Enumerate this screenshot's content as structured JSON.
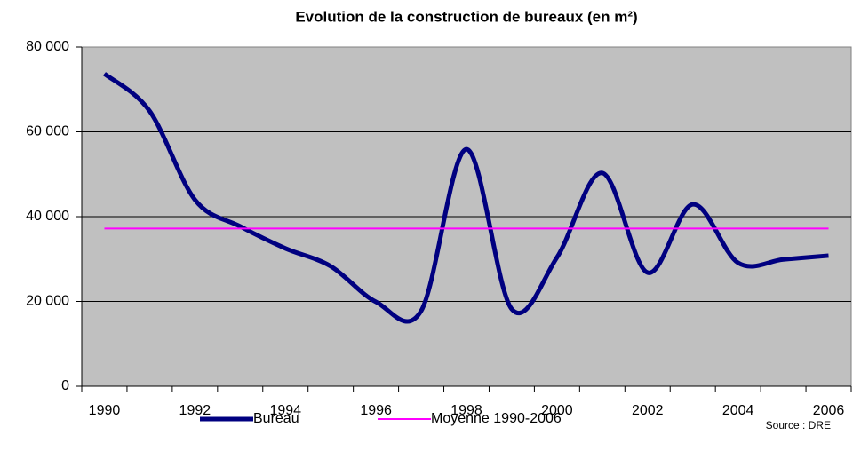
{
  "chart_data": {
    "type": "line",
    "title": "Evolution de la construction de bureaux (en m²)",
    "categories": [
      "1990",
      null,
      "1992",
      null,
      "1994",
      null,
      "1996",
      null,
      "1998",
      null,
      "2000",
      null,
      "2002",
      null,
      "2004",
      null,
      "2006"
    ],
    "series": [
      {
        "name": "Bureau",
        "color": "#000080",
        "values": [
          73700,
          64900,
          44000,
          37700,
          32500,
          28300,
          19900,
          17800,
          55900,
          18200,
          30400,
          50300,
          26800,
          42900,
          29100,
          29900,
          30800
        ]
      },
      {
        "name": "Moyenne 1990-2006",
        "color": "#ff00ff",
        "values": [
          37200,
          37200,
          37200,
          37200,
          37200,
          37200,
          37200,
          37200,
          37200,
          37200,
          37200,
          37200,
          37200,
          37200,
          37200,
          37200,
          37200
        ]
      }
    ],
    "ylim": [
      0,
      80000
    ],
    "yticks": [
      {
        "value": 0,
        "label": "0"
      },
      {
        "value": 20000,
        "label": "20 000"
      },
      {
        "value": 40000,
        "label": "40 000"
      },
      {
        "value": 60000,
        "label": "60 000"
      },
      {
        "value": 80000,
        "label": "80 000"
      }
    ],
    "grid": true,
    "plot_background": "#c0c0c0",
    "legend": "bottom",
    "annotation": "Source : DRE"
  }
}
